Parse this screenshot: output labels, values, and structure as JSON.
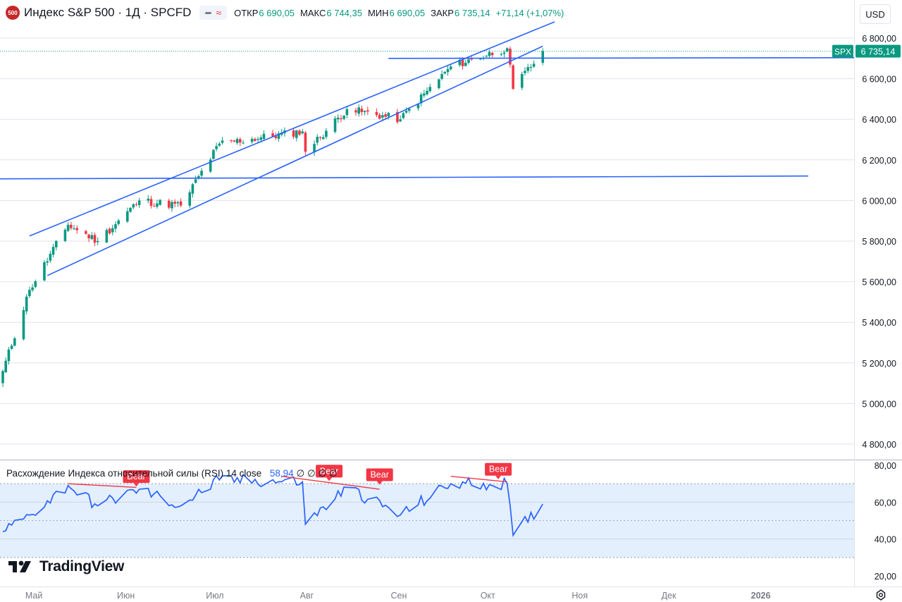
{
  "header": {
    "logo_text": "500",
    "title": "Индекс S&P 500 · 1Д · SPCFD",
    "wave_icon": "≈",
    "ohlc": [
      {
        "label": "ОТКР",
        "value": "6 690,05"
      },
      {
        "label": "МАКС",
        "value": "6 744,35"
      },
      {
        "label": "МИН",
        "value": "6 690,05"
      },
      {
        "label": "ЗАКР",
        "value": "6 735,14"
      },
      {
        "label": "",
        "value": "+71,14 (+1,07%)"
      }
    ]
  },
  "currency_button": "USD",
  "price_tag": {
    "symbol": "SPX",
    "value": "6 735,14"
  },
  "rsi_legend": {
    "text": "Расхождение Индекса относительной силы (RSI) 14 close",
    "value": "58,94",
    "zeros": "∅ ∅ ∅ ∅"
  },
  "brand": "TradingView",
  "colors": {
    "up": "#089981",
    "down": "#f23645",
    "line": "#2962ff",
    "grid": "#e0e3eb",
    "band": "#e3effd"
  },
  "chart_data": [
    {
      "type": "candlestick",
      "title": "Индекс S&P 500 · 1Д · SPCFD",
      "ylim": [
        4720,
        6880
      ],
      "y_ticks": [
        "4 800,00",
        "5 000,00",
        "5 200,00",
        "5 400,00",
        "5 600,00",
        "5 800,00",
        "6 000,00",
        "6 200,00",
        "6 400,00",
        "6 600,00",
        "6 800,00"
      ],
      "x_ticks": [
        "Май",
        "Июн",
        "Июл",
        "Авг",
        "Сен",
        "Окт",
        "Ноя",
        "Дек",
        "2026"
      ],
      "last_close": 6735.14,
      "anchors": [
        {
          "date": "2025-04-21",
          "close": 5160
        },
        {
          "date": "2025-04-30",
          "close": 5560
        },
        {
          "date": "2025-05-13",
          "close": 5880
        },
        {
          "date": "2025-05-23",
          "close": 5800
        },
        {
          "date": "2025-06-06",
          "close": 6000
        },
        {
          "date": "2025-06-20",
          "close": 5975
        },
        {
          "date": "2025-07-03",
          "close": 6280
        },
        {
          "date": "2025-07-31",
          "close": 6340
        },
        {
          "date": "2025-08-01",
          "close": 6240
        },
        {
          "date": "2025-08-15",
          "close": 6450
        },
        {
          "date": "2025-09-02",
          "close": 6400
        },
        {
          "date": "2025-09-19",
          "close": 6660
        },
        {
          "date": "2025-10-08",
          "close": 6750
        },
        {
          "date": "2025-10-10",
          "close": 6550
        },
        {
          "date": "2025-10-20",
          "close": 6735
        }
      ],
      "horizontal_levels": [
        6110,
        6700
      ],
      "channel": {
        "upper": [
          {
            "date": "2025-04-30",
            "price": 5825
          },
          {
            "date": "2025-10-24",
            "price": 6880
          }
        ],
        "lower": [
          {
            "date": "2025-05-06",
            "price": 5630
          },
          {
            "date": "2025-10-20",
            "price": 6760
          }
        ]
      }
    },
    {
      "type": "line",
      "title": "Расхождение Индекса относительной силы (RSI) 14 close",
      "ylim": [
        20,
        80
      ],
      "y_ticks": [
        "20,00",
        "40,00",
        "60,00",
        "80,00"
      ],
      "band": [
        30,
        70
      ],
      "last_value": 58.94,
      "anchors": [
        {
          "date": "2025-04-21",
          "value": 44
        },
        {
          "date": "2025-04-30",
          "value": 53
        },
        {
          "date": "2025-05-13",
          "value": 69
        },
        {
          "date": "2025-05-23",
          "value": 58
        },
        {
          "date": "2025-06-06",
          "value": 67
        },
        {
          "date": "2025-06-20",
          "value": 58
        },
        {
          "date": "2025-07-03",
          "value": 72
        },
        {
          "date": "2025-07-31",
          "value": 71
        },
        {
          "date": "2025-08-01",
          "value": 48
        },
        {
          "date": "2025-08-15",
          "value": 68
        },
        {
          "date": "2025-09-02",
          "value": 53
        },
        {
          "date": "2025-09-19",
          "value": 70
        },
        {
          "date": "2025-10-08",
          "value": 70
        },
        {
          "date": "2025-10-10",
          "value": 42
        },
        {
          "date": "2025-10-20",
          "value": 59
        }
      ],
      "bear_labels": [
        {
          "date": "2025-06-05",
          "value": 70,
          "text": "Bear"
        },
        {
          "date": "2025-08-09",
          "value": 73,
          "text": "Bear"
        },
        {
          "date": "2025-08-26",
          "value": 71,
          "text": "Bear"
        },
        {
          "date": "2025-10-05",
          "value": 74,
          "text": "Bear"
        }
      ],
      "divergence_lines": [
        {
          "from": {
            "date": "2025-05-13",
            "value": 70
          },
          "to": {
            "date": "2025-06-05",
            "value": 68
          }
        },
        {
          "from": {
            "date": "2025-07-24",
            "value": 74
          },
          "to": {
            "date": "2025-08-26",
            "value": 67
          }
        },
        {
          "from": {
            "date": "2025-09-19",
            "value": 74
          },
          "to": {
            "date": "2025-10-08",
            "value": 71
          }
        }
      ]
    }
  ]
}
